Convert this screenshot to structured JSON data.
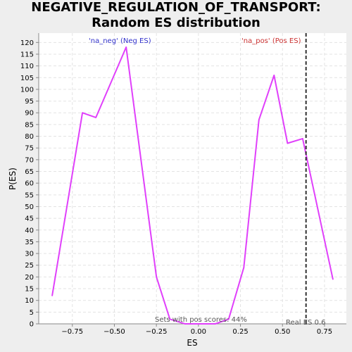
{
  "chart_data": {
    "type": "line",
    "title": "NEGATIVE_REGULATION_OF_TRANSPORT: Random ES distribution",
    "xlabel": "ES",
    "ylabel": "P(ES)",
    "xlim": [
      -0.95,
      0.88
    ],
    "ylim": [
      0,
      124
    ],
    "x_ticks": [
      -0.75,
      -0.5,
      -0.25,
      0.0,
      0.25,
      0.5,
      0.75
    ],
    "x_tick_labels": [
      "−0.75",
      "−0.50",
      "−0.25",
      "0.00",
      "0.25",
      "0.50",
      "0.75"
    ],
    "y_ticks": [
      0,
      5,
      10,
      15,
      20,
      25,
      30,
      35,
      40,
      45,
      50,
      55,
      60,
      65,
      70,
      75,
      80,
      85,
      90,
      95,
      100,
      105,
      110,
      115,
      120
    ],
    "grid": true,
    "series": [
      {
        "color": "#e040fb",
        "x": [
          -0.87,
          -0.69,
          -0.61,
          -0.43,
          -0.25,
          -0.17,
          -0.08,
          0.0,
          0.1,
          0.18,
          0.27,
          0.36,
          0.45,
          0.53,
          0.62,
          0.8
        ],
        "y": [
          12,
          90,
          88,
          118,
          20,
          2,
          0,
          0,
          0,
          2,
          24,
          87,
          106,
          77,
          79,
          19
        ]
      }
    ],
    "marker_line": {
      "x": 0.64,
      "color": "#333333"
    },
    "annotations": {
      "neg_label": "'na_neg' (Neg ES)",
      "pos_label": "'na_pos' (Pos ES)",
      "sets_label": "Sets with pos scores: 44%",
      "real_es_label": "Real ES 0.6"
    },
    "colors": {
      "neg_label": "#3333cc",
      "pos_label": "#cc3333",
      "background": "#eeeeee",
      "plot_background": "#ffffff",
      "grid": "#e3e3e3"
    }
  }
}
